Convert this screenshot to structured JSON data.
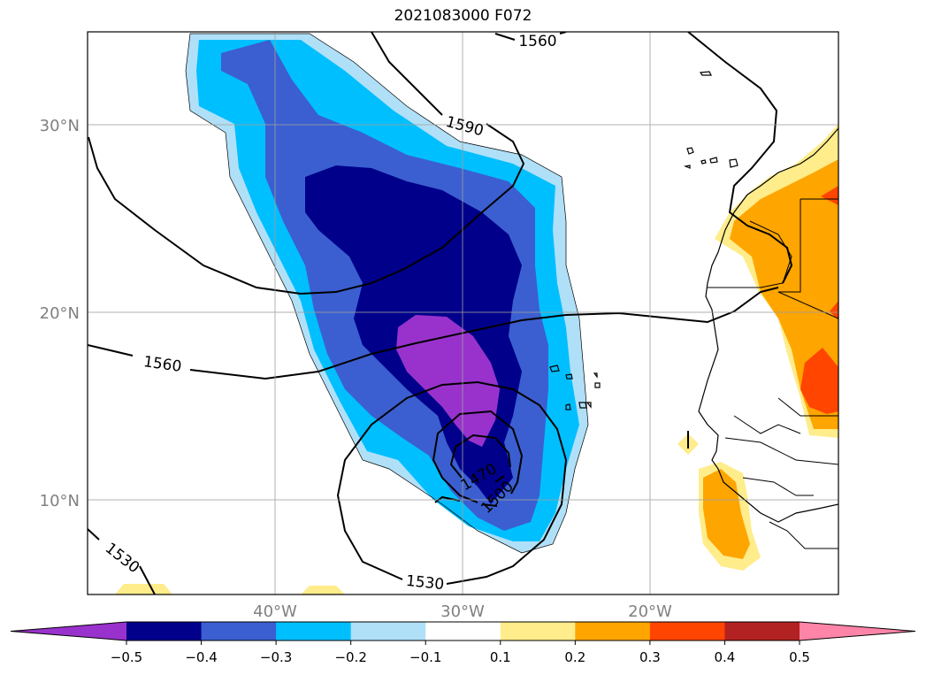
{
  "title": "2021083000 F072",
  "map": {
    "lat_labels": [
      "30°N",
      "20°N",
      "10°N"
    ],
    "lon_labels": [
      "40°W",
      "30°W",
      "20°W"
    ],
    "extent": {
      "lon": [
        -50,
        -10
      ],
      "lat": [
        5,
        35
      ]
    },
    "contour_labels": [
      "1560",
      "1590",
      "1560",
      "1530",
      "1530",
      "1470",
      "1500"
    ],
    "projection": "PlateCarree",
    "gridlines": true
  },
  "colorbar": {
    "ticks": [
      "−0.5",
      "−0.4",
      "−0.3",
      "−0.2",
      "−0.1",
      "0.1",
      "0.2",
      "0.3",
      "0.4",
      "0.5"
    ],
    "colors": [
      "#9932cc",
      "#00008b",
      "#3b5fd0",
      "#00bfff",
      "#b0e0f8",
      "#ffffff",
      "#ffec8b",
      "#ffa500",
      "#ff4500",
      "#b22222",
      "#ff85a8"
    ],
    "extend": "both"
  }
}
